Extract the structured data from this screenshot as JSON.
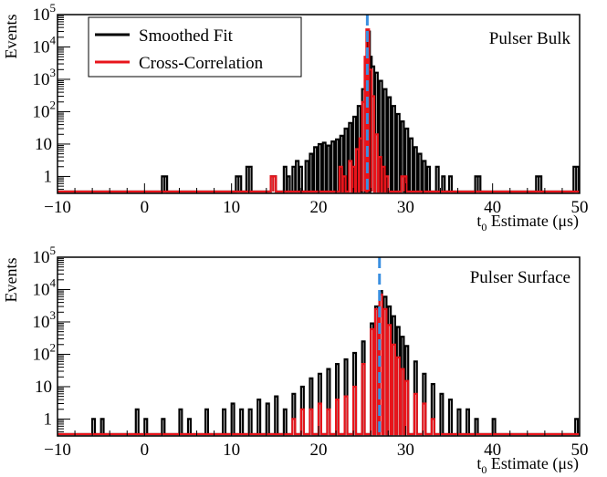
{
  "chart_data": [
    {
      "type": "line",
      "panel_label": "Pulser Bulk",
      "xlabel_main": "t",
      "xlabel_sub": "0",
      "xlabel_rest": " Estimate (μs)",
      "ylabel": "Events",
      "xlim": [
        -10,
        50
      ],
      "ylim_log": [
        0.3,
        100000
      ],
      "y_scale": "log",
      "x_ticks": [
        -10,
        0,
        10,
        20,
        30,
        40,
        50
      ],
      "y_ticks": [
        {
          "value": 1,
          "base": "1",
          "exp": ""
        },
        {
          "value": 10,
          "base": "10",
          "exp": ""
        },
        {
          "value": 100,
          "base": "10",
          "exp": "2"
        },
        {
          "value": 1000,
          "base": "10",
          "exp": "3"
        },
        {
          "value": 10000,
          "base": "10",
          "exp": "4"
        },
        {
          "value": 100000,
          "base": "10",
          "exp": "5"
        }
      ],
      "marker_line_x": 25.6,
      "marker_color": "#3a8fe0",
      "legend": {
        "position": "top-left",
        "entries": [
          {
            "name": "Smoothed Fit",
            "color": "#000000"
          },
          {
            "name": "Cross-Correlation",
            "color": "#e8141b"
          }
        ]
      },
      "series": [
        {
          "name": "Smoothed Fit",
          "color": "#000000",
          "points": [
            [
              2,
              1
            ],
            [
              2.3,
              1
            ],
            [
              10.5,
              1
            ],
            [
              10.8,
              1
            ],
            [
              11.7,
              2
            ],
            [
              12,
              2
            ],
            [
              14.5,
              1
            ],
            [
              14.8,
              1
            ],
            [
              16,
              2
            ],
            [
              16.4,
              1
            ],
            [
              17,
              2
            ],
            [
              17.4,
              3
            ],
            [
              17.8,
              2
            ],
            [
              18.5,
              3
            ],
            [
              19,
              5
            ],
            [
              19.5,
              8
            ],
            [
              20,
              10
            ],
            [
              20.5,
              11
            ],
            [
              21,
              9
            ],
            [
              21.5,
              12
            ],
            [
              22,
              14
            ],
            [
              22.5,
              18
            ],
            [
              23,
              30
            ],
            [
              23.5,
              45
            ],
            [
              24,
              70
            ],
            [
              24.5,
              150
            ],
            [
              25,
              500
            ],
            [
              25.4,
              4000
            ],
            [
              25.6,
              30000
            ],
            [
              25.8,
              5000
            ],
            [
              26.1,
              2500
            ],
            [
              26.5,
              1600
            ],
            [
              27,
              900
            ],
            [
              27.5,
              500
            ],
            [
              28,
              280
            ],
            [
              28.5,
              150
            ],
            [
              29,
              85
            ],
            [
              29.5,
              50
            ],
            [
              30,
              30
            ],
            [
              30.5,
              15
            ],
            [
              31,
              8
            ],
            [
              31.5,
              5
            ],
            [
              32,
              3
            ],
            [
              32.5,
              2
            ],
            [
              33.5,
              2
            ],
            [
              34.2,
              1
            ],
            [
              35,
              1
            ],
            [
              38,
              1
            ],
            [
              38.3,
              1
            ],
            [
              45,
              1
            ],
            [
              45.3,
              1
            ],
            [
              49.3,
              2
            ],
            [
              49.6,
              2
            ]
          ]
        },
        {
          "name": "Cross-Correlation",
          "color": "#e8141b",
          "points": [
            [
              14.5,
              1
            ],
            [
              14.8,
              1
            ],
            [
              22.4,
              2
            ],
            [
              22.8,
              1
            ],
            [
              23.5,
              3
            ],
            [
              23.9,
              2
            ],
            [
              24.3,
              7
            ],
            [
              24.7,
              15
            ],
            [
              25,
              200
            ],
            [
              25.3,
              5000
            ],
            [
              25.5,
              35000
            ],
            [
              25.8,
              2000
            ],
            [
              26.1,
              300
            ],
            [
              26.5,
              20
            ],
            [
              26.9,
              4
            ],
            [
              27.3,
              2
            ],
            [
              27.7,
              1
            ],
            [
              29.5,
              1
            ],
            [
              29.8,
              1
            ]
          ]
        }
      ]
    },
    {
      "type": "line",
      "panel_label": "Pulser Surface",
      "xlabel_main": "t",
      "xlabel_sub": "0",
      "xlabel_rest": " Estimate (μs)",
      "ylabel": "Events",
      "xlim": [
        -10,
        50
      ],
      "ylim_log": [
        0.3,
        100000
      ],
      "y_scale": "log",
      "x_ticks": [
        -10,
        0,
        10,
        20,
        30,
        40,
        50
      ],
      "y_ticks": [
        {
          "value": 1,
          "base": "1",
          "exp": ""
        },
        {
          "value": 10,
          "base": "10",
          "exp": ""
        },
        {
          "value": 100,
          "base": "10",
          "exp": "2"
        },
        {
          "value": 1000,
          "base": "10",
          "exp": "3"
        },
        {
          "value": 10000,
          "base": "10",
          "exp": "4"
        },
        {
          "value": 100000,
          "base": "10",
          "exp": "5"
        }
      ],
      "marker_line_x": 27,
      "marker_color": "#3a8fe0",
      "series": [
        {
          "name": "Smoothed Fit",
          "color": "#000000",
          "points": [
            [
              -6,
              1
            ],
            [
              -5,
              1
            ],
            [
              -1,
              2
            ],
            [
              0,
              1
            ],
            [
              2,
              1
            ],
            [
              4,
              2
            ],
            [
              5,
              1
            ],
            [
              7,
              2
            ],
            [
              9,
              2
            ],
            [
              10,
              3
            ],
            [
              11,
              2
            ],
            [
              12,
              2
            ],
            [
              13,
              4
            ],
            [
              14,
              3
            ],
            [
              15,
              5
            ],
            [
              16,
              2
            ],
            [
              17,
              6
            ],
            [
              18,
              10
            ],
            [
              19,
              18
            ],
            [
              20,
              25
            ],
            [
              21,
              35
            ],
            [
              22,
              50
            ],
            [
              23,
              70
            ],
            [
              24,
              110
            ],
            [
              25,
              250
            ],
            [
              26,
              900
            ],
            [
              26.5,
              3000
            ],
            [
              27,
              9000
            ],
            [
              27.5,
              6000
            ],
            [
              28,
              3000
            ],
            [
              28.5,
              1500
            ],
            [
              29,
              700
            ],
            [
              29.5,
              350
            ],
            [
              30,
              180
            ],
            [
              31,
              60
            ],
            [
              32,
              25
            ],
            [
              33,
              12
            ],
            [
              34,
              6
            ],
            [
              35,
              4
            ],
            [
              36,
              2
            ],
            [
              37,
              2
            ],
            [
              38,
              1
            ],
            [
              40,
              1
            ],
            [
              49.5,
              1
            ]
          ]
        },
        {
          "name": "Cross-Correlation",
          "color": "#e8141b",
          "points": [
            [
              17,
              1
            ],
            [
              18,
              2
            ],
            [
              19,
              2
            ],
            [
              20,
              3
            ],
            [
              21,
              2
            ],
            [
              22,
              4
            ],
            [
              23,
              5
            ],
            [
              24,
              10
            ],
            [
              25,
              50
            ],
            [
              26,
              600
            ],
            [
              26.5,
              2500
            ],
            [
              27,
              7000
            ],
            [
              27.5,
              2500
            ],
            [
              28,
              800
            ],
            [
              28.5,
              200
            ],
            [
              29,
              80
            ],
            [
              29.5,
              35
            ],
            [
              30,
              15
            ],
            [
              31,
              6
            ],
            [
              32,
              3
            ],
            [
              33,
              1
            ]
          ]
        }
      ]
    }
  ]
}
